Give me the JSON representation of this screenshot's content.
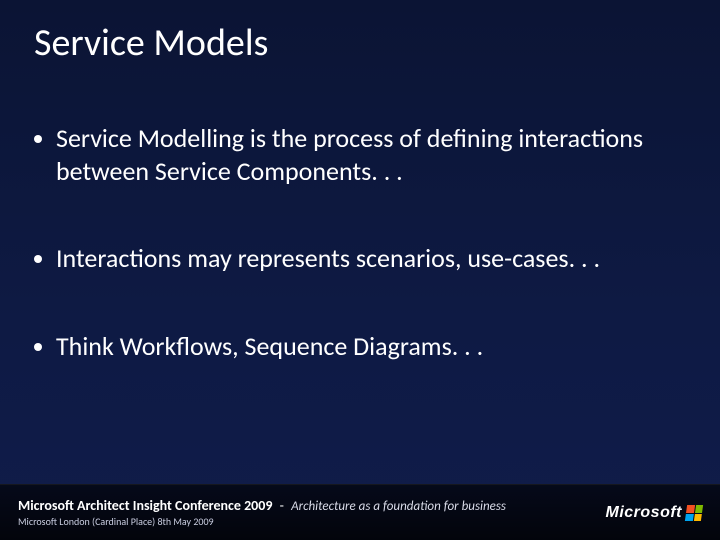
{
  "colors": {
    "background_top": "#0b1434",
    "background_bottom": "#101c4a",
    "text": "#ffffff",
    "bullet_dot": "#ffffff",
    "footer_bg": "rgba(0,0,0,0.8)",
    "footer_subtext": "#c9cde0",
    "ms_flag": [
      "#f25022",
      "#7fba00",
      "#00a4ef",
      "#ffb900"
    ]
  },
  "typography": {
    "title_fontsize": 38,
    "body_fontsize": 26,
    "footer_title_fontsize": 14,
    "footer_sub_fontsize": 10
  },
  "title": "Service Models",
  "bullets": [
    "Service Modelling is the process of defining interactions between Service Components. . .",
    "Interactions may represents scenarios, use-cases. . .",
    "Think Workflows, Sequence Diagrams. . ."
  ],
  "footer": {
    "conference": "Microsoft Architect Insight Conference 2009",
    "tagline": "Architecture as a foundation for business",
    "location_date": "Microsoft London (Cardinal Place) 8th May 2009",
    "brand": "Microsoft"
  }
}
